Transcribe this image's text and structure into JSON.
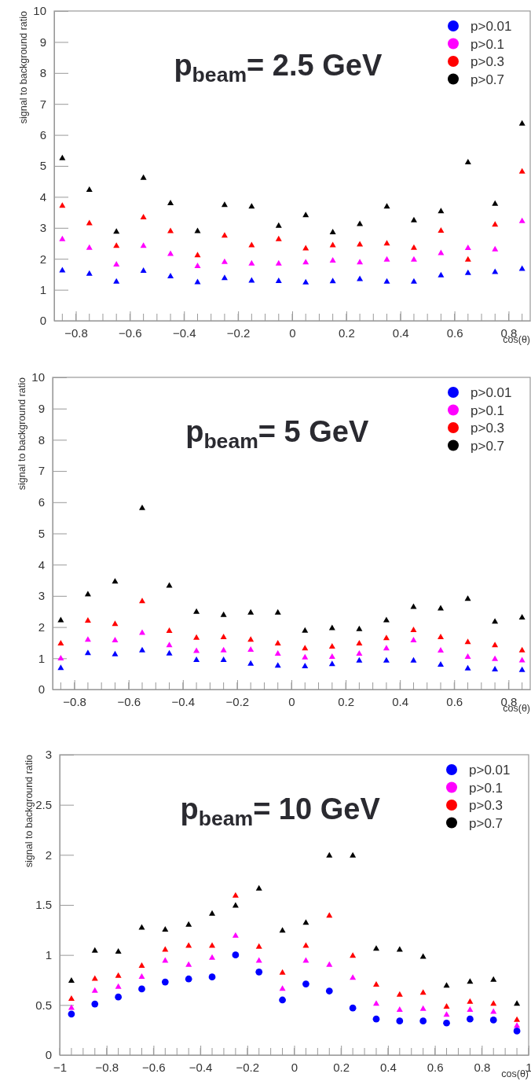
{
  "chart_data": [
    {
      "type": "scatter",
      "title": "p$_{beam}$= 2.5 GeV",
      "xlabel": "cos(θ)",
      "ylabel": "signal to background ratio",
      "x": [
        -0.85,
        -0.75,
        -0.65,
        -0.55,
        -0.45,
        -0.35,
        -0.25,
        -0.15,
        -0.05,
        0.05,
        0.15,
        0.25,
        0.35,
        0.45,
        0.55,
        0.65,
        0.75,
        0.85
      ],
      "xlim": [
        -0.88,
        0.88
      ],
      "xticks": [
        {
          "value": -0.8,
          "label": "−0.8"
        },
        {
          "value": -0.6,
          "label": "−0.6"
        },
        {
          "value": -0.4,
          "label": "−0.4"
        },
        {
          "value": -0.2,
          "label": "−0.2"
        },
        0,
        0.2,
        0.4,
        0.6,
        0.8
      ],
      "ylim": [
        0,
        10
      ],
      "yticks": [
        0,
        1,
        2,
        3,
        4,
        5,
        6,
        7,
        8,
        9,
        10
      ],
      "marker": "triangle",
      "legend": "top right",
      "series": [
        {
          "name": "p>0.01",
          "color": "#0000ff",
          "values": [
            1.65,
            1.54,
            1.29,
            1.64,
            1.46,
            1.27,
            1.4,
            1.32,
            1.31,
            1.26,
            1.3,
            1.37,
            1.29,
            1.29,
            1.49,
            1.57,
            1.6,
            1.7
          ]
        },
        {
          "name": "p>0.1",
          "color": "#ff00ff",
          "values": [
            2.66,
            2.38,
            1.84,
            2.44,
            2.18,
            1.79,
            1.92,
            1.87,
            1.87,
            1.91,
            1.97,
            1.91,
            2.0,
            2.0,
            2.21,
            2.37,
            2.33,
            3.24
          ]
        },
        {
          "name": "p>0.3",
          "color": "#ff0000",
          "values": [
            3.74,
            3.17,
            2.44,
            3.36,
            2.92,
            2.14,
            2.77,
            2.46,
            2.66,
            2.36,
            2.46,
            2.49,
            2.52,
            2.38,
            2.93,
            2.0,
            3.13,
            4.84
          ]
        },
        {
          "name": "p>0.7",
          "color": "#000000",
          "values": [
            5.27,
            4.25,
            2.9,
            4.64,
            3.82,
            2.92,
            3.76,
            3.71,
            3.09,
            3.43,
            2.88,
            3.15,
            3.71,
            3.27,
            3.56,
            5.14,
            3.8,
            6.39
          ]
        }
      ]
    },
    {
      "type": "scatter",
      "title": "p$_{beam}$= 5 GeV",
      "xlabel": "cos(θ)",
      "ylabel": "signal to background ratio",
      "x": [
        -0.85,
        -0.75,
        -0.65,
        -0.55,
        -0.45,
        -0.35,
        -0.25,
        -0.15,
        -0.05,
        0.05,
        0.15,
        0.25,
        0.35,
        0.45,
        0.55,
        0.65,
        0.75,
        0.85
      ],
      "xlim": [
        -0.88,
        0.88
      ],
      "xticks": [
        {
          "value": -0.8,
          "label": "−0.8"
        },
        {
          "value": -0.6,
          "label": "−0.6"
        },
        {
          "value": -0.4,
          "label": "−0.4"
        },
        {
          "value": -0.2,
          "label": "−0.2"
        },
        0,
        0.2,
        0.4,
        0.6,
        0.8
      ],
      "ylim": [
        0,
        10
      ],
      "yticks": [
        0,
        1,
        2,
        3,
        4,
        5,
        6,
        7,
        8,
        9,
        10
      ],
      "marker": "triangle",
      "legend": "top right",
      "series": [
        {
          "name": "p>0.01",
          "color": "#0000ff",
          "values": [
            0.71,
            1.19,
            1.15,
            1.28,
            1.18,
            0.97,
            0.97,
            0.85,
            0.79,
            0.77,
            0.84,
            0.95,
            0.95,
            0.95,
            0.82,
            0.7,
            0.67,
            0.65
          ]
        },
        {
          "name": "p>0.1",
          "color": "#ff00ff",
          "values": [
            1.02,
            1.62,
            1.6,
            1.84,
            1.44,
            1.26,
            1.28,
            1.3,
            1.17,
            1.05,
            1.07,
            1.17,
            1.34,
            1.6,
            1.27,
            1.07,
            1.0,
            0.96
          ]
        },
        {
          "name": "p>0.3",
          "color": "#ff0000",
          "values": [
            1.5,
            2.23,
            2.12,
            2.85,
            1.9,
            1.68,
            1.7,
            1.62,
            1.5,
            1.34,
            1.4,
            1.5,
            1.67,
            1.93,
            1.7,
            1.54,
            1.44,
            1.28
          ]
        },
        {
          "name": "p>0.7",
          "color": "#000000",
          "values": [
            2.24,
            3.07,
            3.48,
            5.84,
            3.35,
            2.51,
            2.41,
            2.49,
            2.49,
            1.91,
            1.99,
            1.96,
            2.24,
            2.67,
            2.62,
            2.93,
            2.2,
            2.33
          ]
        }
      ]
    },
    {
      "type": "scatter",
      "title": "p$_{beam}$= 10 GeV",
      "xlabel": "cos(θ)",
      "ylabel": "signal to background ratio",
      "x": [
        -0.95,
        -0.85,
        -0.75,
        -0.65,
        -0.55,
        -0.45,
        -0.35,
        -0.25,
        -0.15,
        -0.05,
        0.05,
        0.15,
        0.25,
        0.35,
        0.45,
        0.55,
        0.65,
        0.75,
        0.85,
        0.95
      ],
      "xlim": [
        -1,
        1
      ],
      "xticks": [
        {
          "value": -1,
          "label": "−1"
        },
        {
          "value": -0.8,
          "label": "−0.8"
        },
        {
          "value": -0.6,
          "label": "−0.6"
        },
        {
          "value": -0.4,
          "label": "−0.4"
        },
        {
          "value": -0.2,
          "label": "−0.2"
        },
        0,
        0.2,
        0.4,
        0.6,
        0.8,
        1
      ],
      "ylim": [
        0,
        3
      ],
      "yticks": [
        0,
        0.5,
        1,
        1.5,
        2,
        2.5,
        3
      ],
      "marker": "triangle",
      "legend": "top right",
      "series": [
        {
          "name": "p>0.01",
          "color": "#0000ff",
          "marker": "circle",
          "values": [
            0.41,
            0.51,
            0.58,
            0.66,
            0.73,
            0.76,
            0.78,
            1.0,
            0.83,
            0.55,
            0.71,
            0.64,
            0.47,
            0.36,
            0.34,
            0.34,
            0.32,
            0.36,
            0.35,
            0.24
          ]
        },
        {
          "name": "p>0.1",
          "color": "#ff00ff",
          "values": [
            0.48,
            0.65,
            0.69,
            0.79,
            0.95,
            0.91,
            0.98,
            1.2,
            0.95,
            0.67,
            0.95,
            0.91,
            0.78,
            0.52,
            0.46,
            0.47,
            0.41,
            0.46,
            0.44,
            0.3
          ]
        },
        {
          "name": "p>0.3",
          "color": "#ff0000",
          "values": [
            0.57,
            0.77,
            0.8,
            0.9,
            1.06,
            1.1,
            1.1,
            1.6,
            1.09,
            0.83,
            1.1,
            1.4,
            1.0,
            0.71,
            0.61,
            0.63,
            0.49,
            0.54,
            0.52,
            0.36
          ]
        },
        {
          "name": "p>0.7",
          "color": "#000000",
          "values": [
            0.75,
            1.05,
            1.04,
            1.28,
            1.26,
            1.31,
            1.42,
            1.5,
            1.67,
            1.25,
            1.33,
            2.0,
            2.0,
            1.07,
            1.06,
            0.99,
            0.7,
            0.74,
            0.76,
            0.52
          ]
        }
      ]
    }
  ]
}
